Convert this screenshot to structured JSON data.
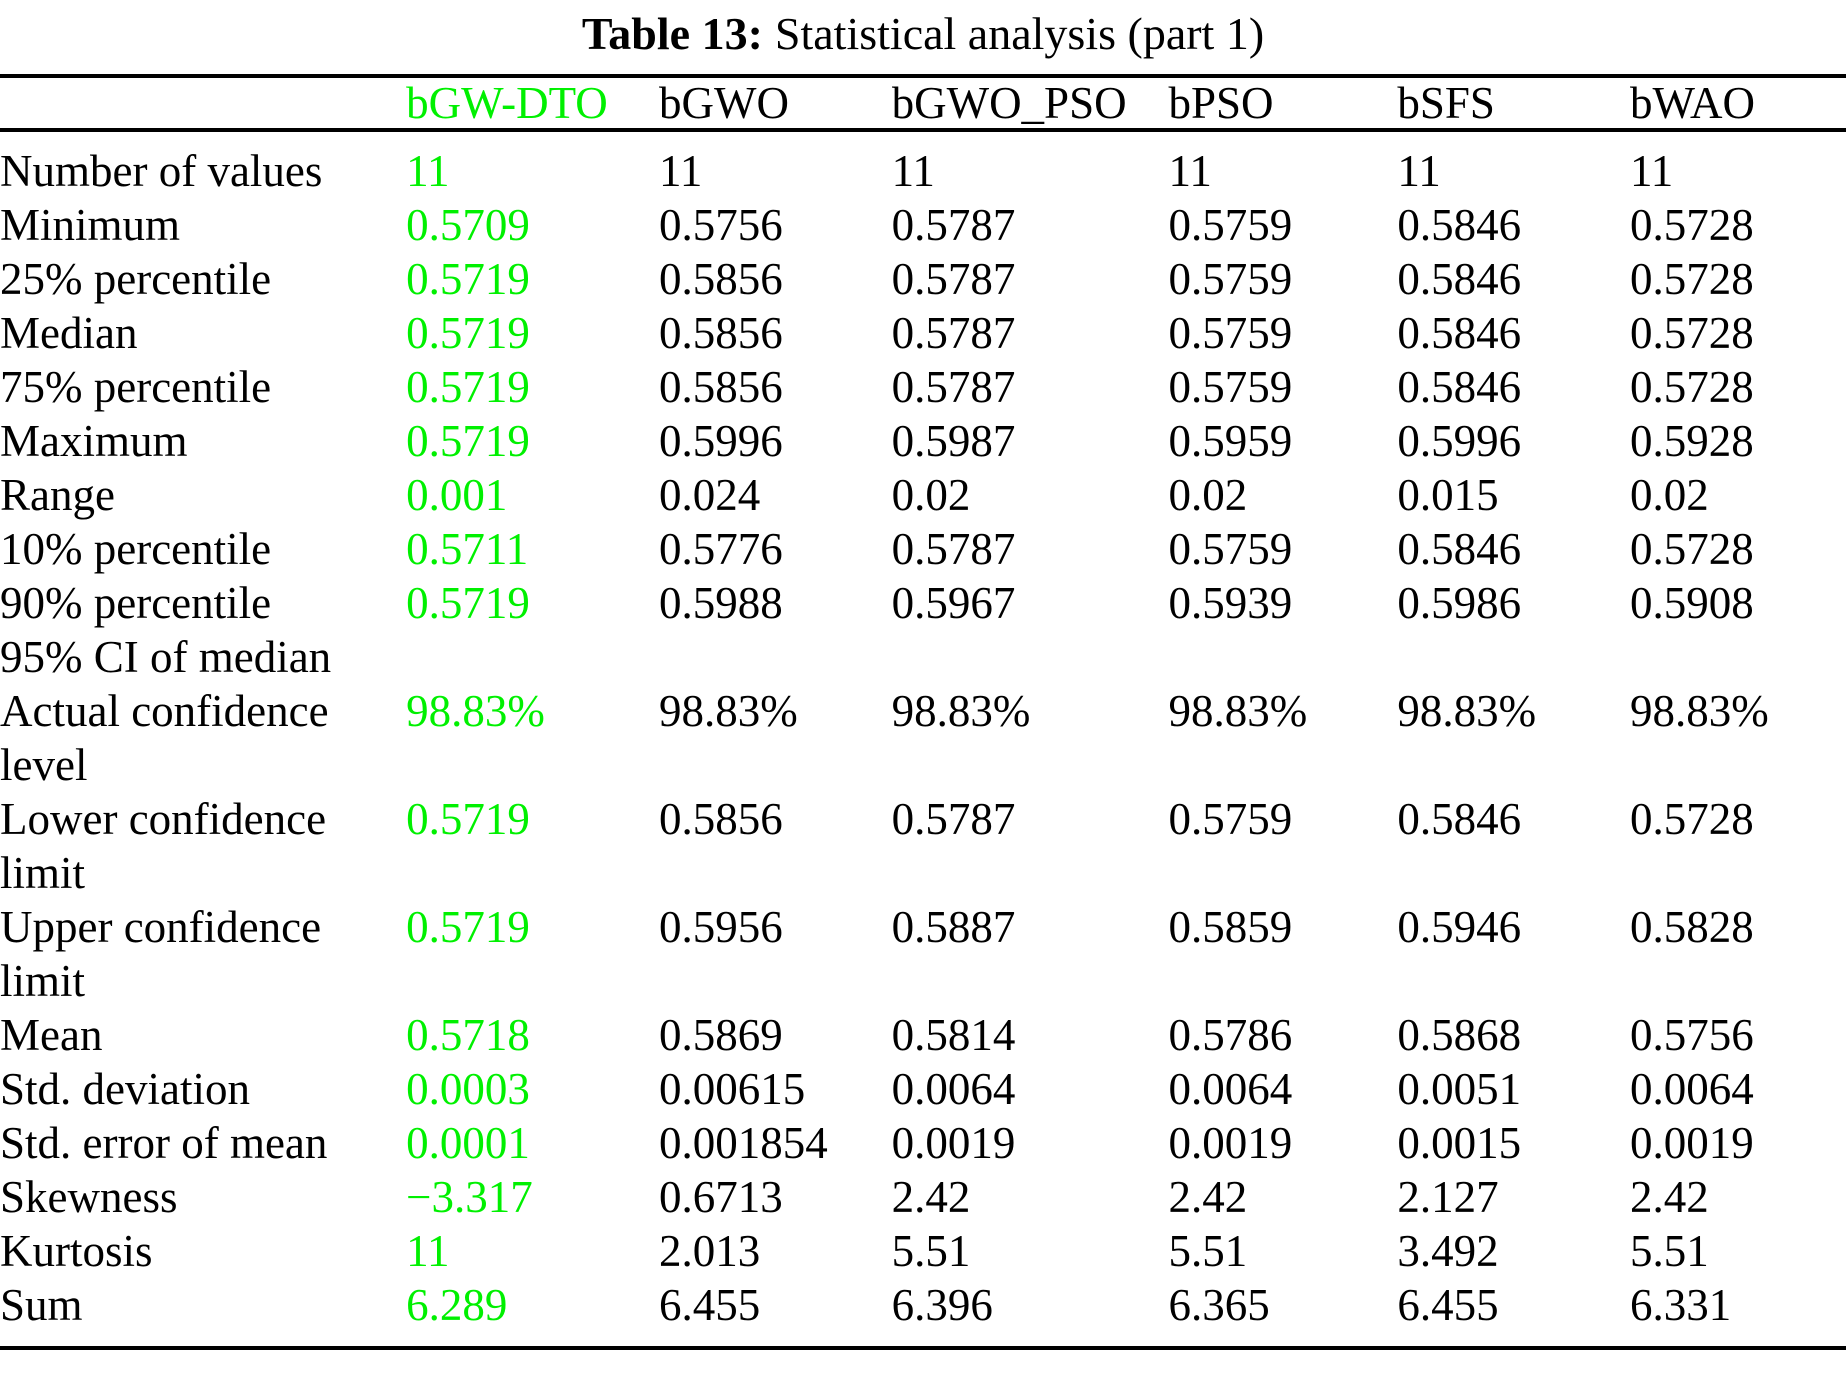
{
  "caption": {
    "label": "Table 13:",
    "text": "Statistical analysis (part 1)"
  },
  "highlight_color": "#00f000",
  "table": {
    "columns": [
      "",
      "bGW-DTO",
      "bGWO",
      "bGWO_PSO",
      "bPSO",
      "bSFS",
      "bWAO"
    ],
    "highlight_column": "bGW-DTO",
    "rows": [
      {
        "label": "Number of values",
        "values": [
          "11",
          "11",
          "11",
          "11",
          "11",
          "11"
        ]
      },
      {
        "label": "Minimum",
        "values": [
          "0.5709",
          "0.5756",
          "0.5787",
          "0.5759",
          "0.5846",
          "0.5728"
        ]
      },
      {
        "label": "25% percentile",
        "values": [
          "0.5719",
          "0.5856",
          "0.5787",
          "0.5759",
          "0.5846",
          "0.5728"
        ]
      },
      {
        "label": "Median",
        "values": [
          "0.5719",
          "0.5856",
          "0.5787",
          "0.5759",
          "0.5846",
          "0.5728"
        ]
      },
      {
        "label": "75% percentile",
        "values": [
          "0.5719",
          "0.5856",
          "0.5787",
          "0.5759",
          "0.5846",
          "0.5728"
        ]
      },
      {
        "label": "Maximum",
        "values": [
          "0.5719",
          "0.5996",
          "0.5987",
          "0.5959",
          "0.5996",
          "0.5928"
        ]
      },
      {
        "label": "Range",
        "values": [
          "0.001",
          "0.024",
          "0.02",
          "0.02",
          "0.015",
          "0.02"
        ]
      },
      {
        "label": "10% percentile",
        "values": [
          "0.5711",
          "0.5776",
          "0.5787",
          "0.5759",
          "0.5846",
          "0.5728"
        ]
      },
      {
        "label": "90% percentile",
        "values": [
          "0.5719",
          "0.5988",
          "0.5967",
          "0.5939",
          "0.5986",
          "0.5908"
        ]
      },
      {
        "label": "95% CI of median",
        "values": [
          "",
          "",
          "",
          "",
          "",
          ""
        ]
      },
      {
        "label": "Actual confidence level",
        "values": [
          "98.83%",
          "98.83%",
          "98.83%",
          "98.83%",
          "98.83%",
          "98.83%"
        ]
      },
      {
        "label": "Lower confidence limit",
        "values": [
          "0.5719",
          "0.5856",
          "0.5787",
          "0.5759",
          "0.5846",
          "0.5728"
        ]
      },
      {
        "label": "Upper confidence limit",
        "values": [
          "0.5719",
          "0.5956",
          "0.5887",
          "0.5859",
          "0.5946",
          "0.5828"
        ]
      },
      {
        "label": "Mean",
        "values": [
          "0.5718",
          "0.5869",
          "0.5814",
          "0.5786",
          "0.5868",
          "0.5756"
        ]
      },
      {
        "label": "Std. deviation",
        "values": [
          "0.0003",
          "0.00615",
          "0.0064",
          "0.0064",
          "0.0051",
          "0.0064"
        ]
      },
      {
        "label": "Std. error of mean",
        "values": [
          "0.0001",
          "0.001854",
          "0.0019",
          "0.0019",
          "0.0015",
          "0.0019"
        ]
      },
      {
        "label": "Skewness",
        "values": [
          "−3.317",
          "0.6713",
          "2.42",
          "2.42",
          "2.127",
          "2.42"
        ]
      },
      {
        "label": "Kurtosis",
        "values": [
          "11",
          "2.013",
          "5.51",
          "5.51",
          "3.492",
          "5.51"
        ]
      },
      {
        "label": "Sum",
        "values": [
          "6.289",
          "6.455",
          "6.396",
          "6.365",
          "6.455",
          "6.331"
        ]
      }
    ]
  }
}
